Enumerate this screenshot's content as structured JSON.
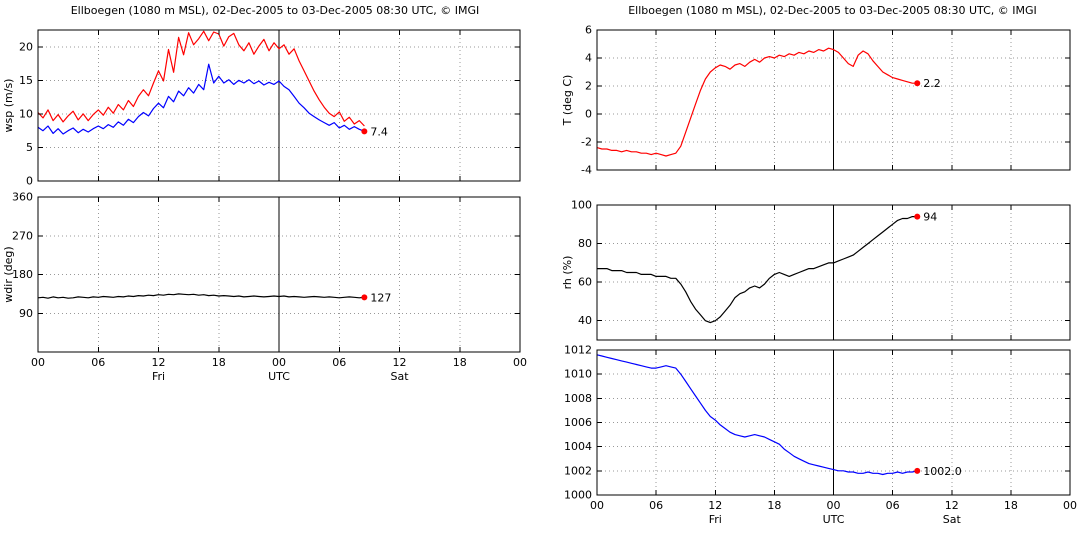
{
  "titles": {
    "left": "Ellboegen (1080 m MSL), 02-Dec-2005 to 03-Dec-2005 08:30 UTC, © IMGI",
    "right": "Ellboegen (1080 m MSL), 02-Dec-2005 to 03-Dec-2005 08:30 UTC, © IMGI"
  },
  "colors": {
    "red": "#ff0000",
    "blue": "#0000ff",
    "black": "#000000",
    "grid": "#999999"
  },
  "chart_data": [
    {
      "id": "wind-speed",
      "type": "line",
      "ylabel": "wsp (m/s)",
      "xlabel": "",
      "ylim": [
        0,
        22.5
      ],
      "yticks": [
        0,
        5,
        10,
        15,
        20
      ],
      "xlim": [
        0,
        48
      ],
      "xticks": [
        0,
        6,
        12,
        18,
        24,
        30,
        36,
        42,
        48
      ],
      "xtick_labels": [
        "00",
        "06",
        "12",
        "18",
        "00",
        "06",
        "12",
        "18",
        "00"
      ],
      "show_x_labels": false,
      "vline_x": 24,
      "grid": true,
      "series": [
        {
          "name": "wsp-max",
          "color": "#ff0000",
          "x0": 0,
          "dx": 0.5,
          "y": [
            10.2,
            9.4,
            10.6,
            9.0,
            9.9,
            8.8,
            9.7,
            10.4,
            9.1,
            10.0,
            9.0,
            9.9,
            10.6,
            9.8,
            11.0,
            10.1,
            11.4,
            10.6,
            12.0,
            11.1,
            12.6,
            13.6,
            12.7,
            14.6,
            16.4,
            14.9,
            19.6,
            16.2,
            21.4,
            18.8,
            22.1,
            20.3,
            21.2,
            22.3,
            20.9,
            22.2,
            21.9,
            20.1,
            21.5,
            22.0,
            20.3,
            19.4,
            20.6,
            18.9,
            20.1,
            21.1,
            19.4,
            20.6,
            19.7,
            20.3,
            18.9,
            19.7,
            17.9,
            16.4,
            14.9,
            13.4,
            12.1,
            11.0,
            10.1,
            9.6,
            10.3,
            8.9,
            9.5,
            8.5,
            9.0,
            8.2
          ]
        },
        {
          "name": "wsp-mean",
          "color": "#0000ff",
          "x0": 0,
          "dx": 0.5,
          "y": [
            8.0,
            7.5,
            8.2,
            7.1,
            7.8,
            7.0,
            7.5,
            7.9,
            7.2,
            7.7,
            7.3,
            7.8,
            8.2,
            7.8,
            8.4,
            8.0,
            8.8,
            8.3,
            9.2,
            8.7,
            9.6,
            10.2,
            9.7,
            10.8,
            11.6,
            10.9,
            12.6,
            11.8,
            13.4,
            12.7,
            13.9,
            13.1,
            14.4,
            13.6,
            17.4,
            14.6,
            15.6,
            14.6,
            15.1,
            14.4,
            15.0,
            14.6,
            15.1,
            14.5,
            14.9,
            14.3,
            14.7,
            14.4,
            14.9,
            14.1,
            13.6,
            12.6,
            11.6,
            10.9,
            10.1,
            9.6,
            9.1,
            8.7,
            8.3,
            8.7,
            7.9,
            8.3,
            7.7,
            8.1,
            7.7,
            7.4
          ]
        }
      ],
      "end_label": {
        "text": "7.4",
        "x": 32.5,
        "y": 7.4,
        "marker_color": "#ff0000"
      }
    },
    {
      "id": "wind-direction",
      "type": "line",
      "ylabel": "wdir (deg)",
      "xlabel": "",
      "ylim": [
        0,
        360
      ],
      "yticks": [
        90,
        180,
        270,
        360
      ],
      "xlim": [
        0,
        48
      ],
      "xticks": [
        0,
        6,
        12,
        18,
        24,
        30,
        36,
        42,
        48
      ],
      "xtick_labels": [
        "00",
        "06",
        "12",
        "18",
        "00",
        "06",
        "12",
        "18",
        "00"
      ],
      "show_x_labels": true,
      "day_labels": [
        {
          "x": 12,
          "label": "Fri"
        },
        {
          "x": 24,
          "label": "UTC"
        },
        {
          "x": 36,
          "label": "Sat"
        }
      ],
      "vline_x": 24,
      "grid": true,
      "series": [
        {
          "name": "wdir",
          "color": "#000000",
          "x0": 0,
          "dx": 0.5,
          "y": [
            126,
            127,
            125,
            128,
            126,
            127,
            125,
            126,
            128,
            127,
            126,
            128,
            127,
            129,
            128,
            127,
            129,
            128,
            130,
            129,
            131,
            130,
            132,
            131,
            133,
            132,
            134,
            133,
            135,
            134,
            133,
            134,
            132,
            133,
            131,
            132,
            130,
            131,
            130,
            129,
            130,
            128,
            129,
            130,
            129,
            128,
            129,
            130,
            129,
            130,
            128,
            129,
            128,
            127,
            128,
            129,
            128,
            127,
            128,
            127,
            126,
            127,
            128,
            127,
            126,
            127
          ]
        }
      ],
      "end_label": {
        "text": "127",
        "x": 32.5,
        "y": 127,
        "marker_color": "#ff0000"
      }
    },
    {
      "id": "temperature",
      "type": "line",
      "ylabel": "T (deg C)",
      "xlabel": "",
      "ylim": [
        -4,
        6
      ],
      "yticks": [
        -4,
        -2,
        0,
        2,
        4,
        6
      ],
      "xlim": [
        0,
        48
      ],
      "xticks": [
        0,
        6,
        12,
        18,
        24,
        30,
        36,
        42,
        48
      ],
      "xtick_labels": [
        "00",
        "06",
        "12",
        "18",
        "00",
        "06",
        "12",
        "18",
        "00"
      ],
      "show_x_labels": false,
      "vline_x": 24,
      "grid": true,
      "series": [
        {
          "name": "temp",
          "color": "#ff0000",
          "x0": 0,
          "dx": 0.5,
          "y": [
            -2.4,
            -2.5,
            -2.5,
            -2.6,
            -2.6,
            -2.7,
            -2.6,
            -2.7,
            -2.7,
            -2.8,
            -2.8,
            -2.9,
            -2.8,
            -2.9,
            -3.0,
            -2.9,
            -2.8,
            -2.3,
            -1.3,
            -0.3,
            0.7,
            1.7,
            2.5,
            3.0,
            3.3,
            3.5,
            3.4,
            3.2,
            3.5,
            3.6,
            3.4,
            3.7,
            3.9,
            3.7,
            4.0,
            4.1,
            4.0,
            4.2,
            4.1,
            4.3,
            4.2,
            4.4,
            4.3,
            4.5,
            4.4,
            4.6,
            4.5,
            4.7,
            4.6,
            4.4,
            4.0,
            3.6,
            3.4,
            4.2,
            4.5,
            4.3,
            3.8,
            3.4,
            3.0,
            2.8,
            2.6,
            2.5,
            2.4,
            2.3,
            2.2,
            2.2
          ]
        }
      ],
      "end_label": {
        "text": "2.2",
        "x": 32.5,
        "y": 2.2,
        "marker_color": "#ff0000"
      }
    },
    {
      "id": "humidity",
      "type": "line",
      "ylabel": "rh (%)",
      "xlabel": "",
      "ylim": [
        30,
        100
      ],
      "yticks": [
        40,
        60,
        80,
        100
      ],
      "xlim": [
        0,
        48
      ],
      "xticks": [
        0,
        6,
        12,
        18,
        24,
        30,
        36,
        42,
        48
      ],
      "xtick_labels": [
        "00",
        "06",
        "12",
        "18",
        "00",
        "06",
        "12",
        "18",
        "00"
      ],
      "show_x_labels": false,
      "vline_x": 24,
      "grid": true,
      "series": [
        {
          "name": "rh",
          "color": "#000000",
          "x0": 0,
          "dx": 0.5,
          "y": [
            67,
            67,
            67,
            66,
            66,
            66,
            65,
            65,
            65,
            64,
            64,
            64,
            63,
            63,
            63,
            62,
            62,
            59,
            55,
            50,
            46,
            43,
            40,
            39,
            40,
            42,
            45,
            48,
            52,
            54,
            55,
            57,
            58,
            57,
            59,
            62,
            64,
            65,
            64,
            63,
            64,
            65,
            66,
            67,
            67,
            68,
            69,
            70,
            70,
            71,
            72,
            73,
            74,
            76,
            78,
            80,
            82,
            84,
            86,
            88,
            90,
            92,
            93,
            93,
            94,
            94
          ]
        }
      ],
      "end_label": {
        "text": "94",
        "x": 32.5,
        "y": 94,
        "marker_color": "#ff0000"
      }
    },
    {
      "id": "pressure",
      "type": "line",
      "ylabel": "",
      "xlabel": "",
      "ylim": [
        1000,
        1012
      ],
      "yticks": [
        1000,
        1002,
        1004,
        1006,
        1008,
        1010,
        1012
      ],
      "xlim": [
        0,
        48
      ],
      "xticks": [
        0,
        6,
        12,
        18,
        24,
        30,
        36,
        42,
        48
      ],
      "xtick_labels": [
        "00",
        "06",
        "12",
        "18",
        "00",
        "06",
        "12",
        "18",
        "00"
      ],
      "show_x_labels": true,
      "day_labels": [
        {
          "x": 12,
          "label": "Fri"
        },
        {
          "x": 24,
          "label": "UTC"
        },
        {
          "x": 36,
          "label": "Sat"
        }
      ],
      "vline_x": 24,
      "grid": true,
      "series": [
        {
          "name": "pressure",
          "color": "#0000ff",
          "x0": 0,
          "dx": 0.5,
          "y": [
            1011.6,
            1011.5,
            1011.4,
            1011.3,
            1011.2,
            1011.1,
            1011.0,
            1010.9,
            1010.8,
            1010.7,
            1010.6,
            1010.5,
            1010.5,
            1010.6,
            1010.7,
            1010.6,
            1010.5,
            1010.0,
            1009.4,
            1008.8,
            1008.2,
            1007.6,
            1007.0,
            1006.5,
            1006.2,
            1005.8,
            1005.5,
            1005.2,
            1005.0,
            1004.9,
            1004.8,
            1004.9,
            1005.0,
            1004.9,
            1004.8,
            1004.6,
            1004.4,
            1004.2,
            1003.8,
            1003.5,
            1003.2,
            1003.0,
            1002.8,
            1002.6,
            1002.5,
            1002.4,
            1002.3,
            1002.2,
            1002.1,
            1002.0,
            1002.0,
            1001.9,
            1001.9,
            1001.8,
            1001.8,
            1001.9,
            1001.8,
            1001.8,
            1001.7,
            1001.8,
            1001.8,
            1001.9,
            1001.8,
            1001.9,
            1001.9,
            1002.0
          ]
        }
      ],
      "end_label": {
        "text": "1002.0",
        "x": 32.5,
        "y": 1002.0,
        "marker_color": "#ff0000"
      }
    }
  ]
}
